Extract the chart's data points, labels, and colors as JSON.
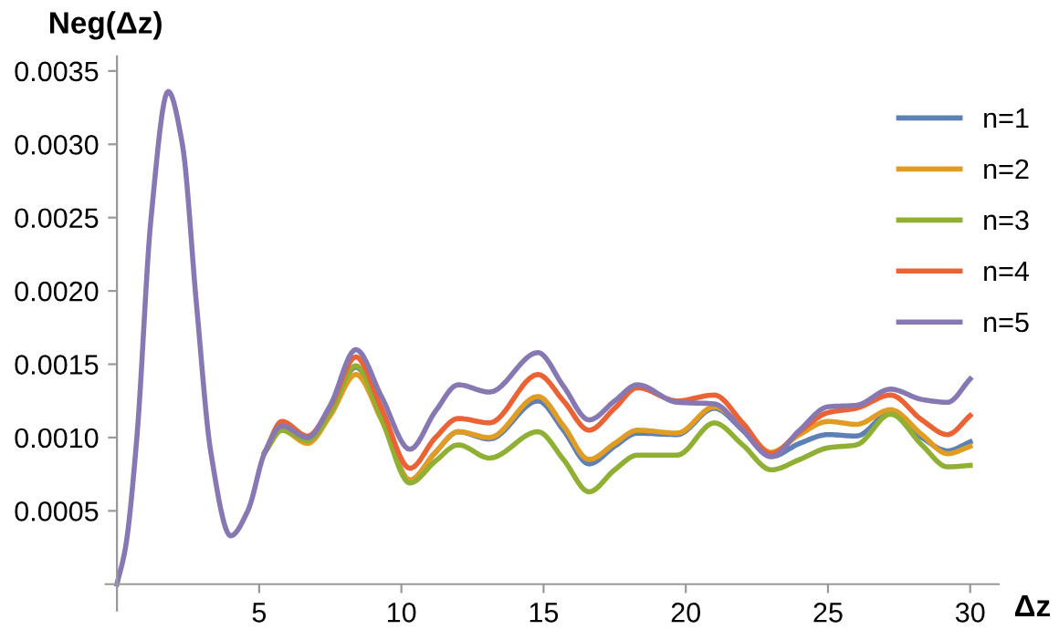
{
  "chart_data": {
    "type": "line",
    "ylabel": "Neg(Δz)",
    "xlabel": "Δz",
    "x": [
      0,
      0.3,
      0.7,
      1.2,
      1.8,
      2.3,
      2.8,
      3.3,
      4.0,
      4.6,
      5.2,
      5.8,
      6.7,
      7.5,
      8.4,
      9.3,
      10.3,
      11.2,
      12.0,
      13.1,
      14.8,
      15.7,
      16.6,
      17.5,
      18.3,
      19.7,
      21.0,
      22.0,
      23.0,
      24.0,
      25.0,
      26.0,
      27.2,
      28.3,
      29.2,
      30
    ],
    "series": [
      {
        "name": "n=1",
        "color": "#5e81b5",
        "values": [
          null,
          null,
          null,
          null,
          null,
          null,
          null,
          null,
          null,
          null,
          0.0009,
          0.00106,
          0.00099,
          0.00118,
          0.00148,
          0.00115,
          0.00071,
          0.0009,
          0.00104,
          0.00099,
          0.00125,
          0.00105,
          0.00082,
          0.00094,
          0.00103,
          0.00102,
          0.0012,
          0.00105,
          0.00087,
          0.00096,
          0.00102,
          0.00101,
          0.00117,
          0.001,
          0.00091,
          0.00097
        ]
      },
      {
        "name": "n=2",
        "color": "#e19c24",
        "values": [
          null,
          null,
          null,
          null,
          null,
          null,
          null,
          null,
          null,
          null,
          0.0009,
          0.00105,
          0.00096,
          0.00115,
          0.00143,
          0.00112,
          0.00071,
          0.0009,
          0.00104,
          0.001,
          0.00128,
          0.00108,
          0.00085,
          0.00096,
          0.00105,
          0.00103,
          0.00121,
          0.00107,
          0.0009,
          0.00102,
          0.00111,
          0.00109,
          0.00119,
          0.00102,
          0.00089,
          0.00094
        ]
      },
      {
        "name": "n=3",
        "color": "#8fb032",
        "values": [
          null,
          null,
          null,
          null,
          null,
          null,
          null,
          null,
          null,
          null,
          0.0009,
          0.00105,
          0.00098,
          0.00117,
          0.00149,
          0.00113,
          0.00069,
          0.00084,
          0.00095,
          0.00086,
          0.00104,
          0.00085,
          0.00063,
          0.00078,
          0.00088,
          0.00088,
          0.0011,
          0.00095,
          0.00078,
          0.00085,
          0.00093,
          0.00095,
          0.00116,
          0.00095,
          0.0008,
          0.00081
        ]
      },
      {
        "name": "n=4",
        "color": "#eb6235",
        "values": [
          null,
          null,
          null,
          null,
          null,
          null,
          null,
          null,
          null,
          null,
          0.0009,
          0.00111,
          0.00101,
          0.00121,
          0.00155,
          0.0012,
          0.00079,
          0.001,
          0.00113,
          0.0011,
          0.00143,
          0.00125,
          0.00105,
          0.0012,
          0.00134,
          0.00125,
          0.00129,
          0.0011,
          0.00089,
          0.00104,
          0.00117,
          0.0012,
          0.00129,
          0.00112,
          0.00102,
          0.00115
        ]
      },
      {
        "name": "n=5",
        "color": "#8778b3",
        "values": [
          0,
          0.00025,
          0.001,
          0.0025,
          0.00336,
          0.003,
          0.0019,
          0.0009,
          0.00033,
          0.0005,
          0.0009,
          0.00108,
          0.001,
          0.00122,
          0.0016,
          0.00128,
          0.00092,
          0.00118,
          0.00136,
          0.00131,
          0.00158,
          0.00135,
          0.00112,
          0.00125,
          0.00136,
          0.00124,
          0.00123,
          0.00105,
          0.00087,
          0.00105,
          0.00121,
          0.00122,
          0.00133,
          0.00126,
          0.00124,
          0.0014
        ]
      }
    ],
    "xlim": [
      -0.4,
      31
    ],
    "ylim": [
      -0.00018,
      0.0036
    ],
    "xticks": [
      5,
      10,
      15,
      20,
      25,
      30
    ],
    "yticks": [
      {
        "value": 0.0005,
        "label": "0.0005"
      },
      {
        "value": 0.001,
        "label": "0.0010"
      },
      {
        "value": 0.0015,
        "label": "0.0015"
      },
      {
        "value": 0.002,
        "label": "0.0020"
      },
      {
        "value": 0.0025,
        "label": "0.0025"
      },
      {
        "value": 0.003,
        "label": "0.0030"
      },
      {
        "value": 0.0035,
        "label": "0.0035"
      }
    ],
    "grid": false,
    "legend": "right",
    "line_style": "solid",
    "marker": "none"
  }
}
